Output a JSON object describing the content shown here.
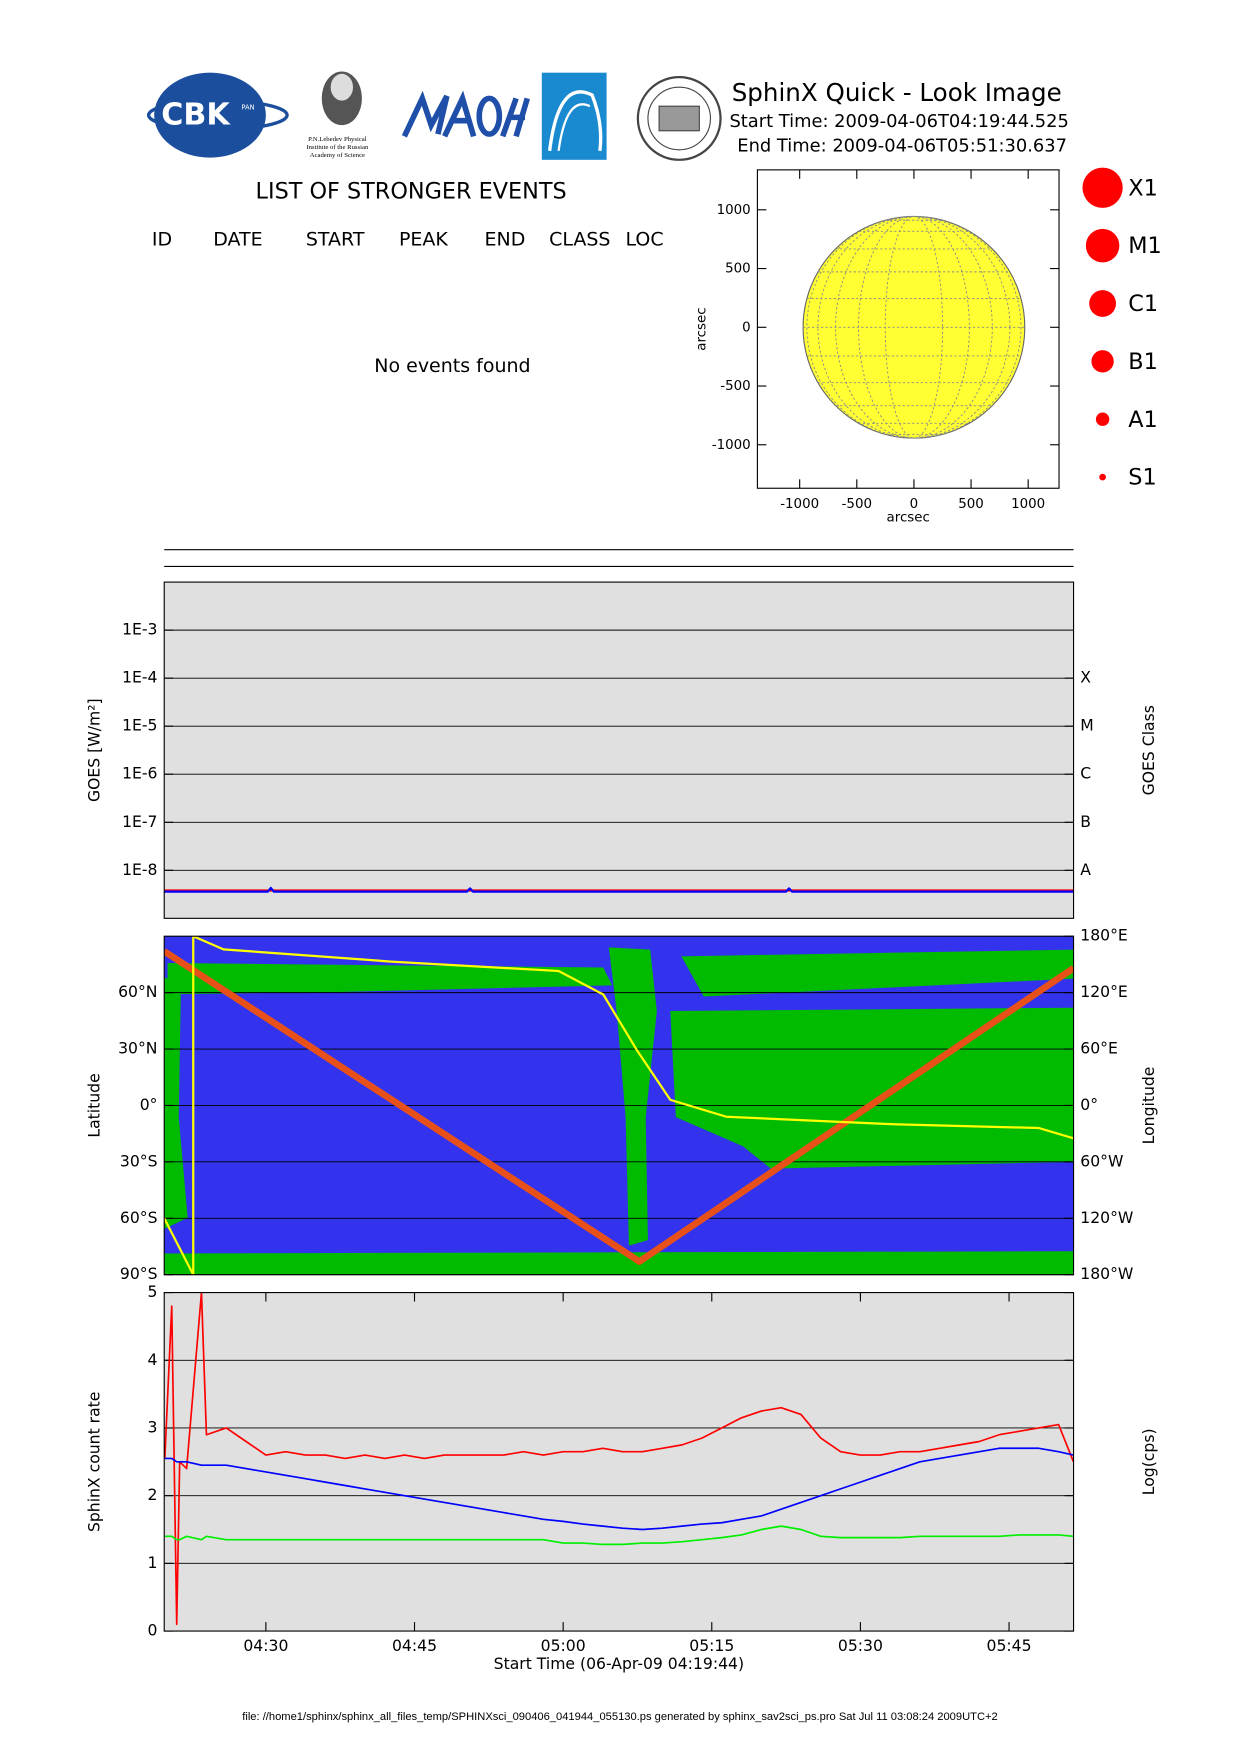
{
  "header": {
    "title": "SphinX Quick - Look Image",
    "start_time": "Start Time: 2009-04-06T04:19:44.525",
    "end_time": "End Time: 2009-04-06T05:51:30.637"
  },
  "logos": {
    "cbk": "CBK",
    "pan": "PAN",
    "lebedev": [
      "P.N.Lebedev Physical",
      "Institute of the Russian",
      "Academy of Science"
    ]
  },
  "events": {
    "title": "LIST OF STRONGER EVENTS",
    "columns": [
      "ID",
      "DATE",
      "START",
      "PEAK",
      "END",
      "CLASS",
      "LOC"
    ],
    "message": "No events found"
  },
  "classes": [
    "X1",
    "M1",
    "C1",
    "B1",
    "A1",
    "S1"
  ],
  "class_color": "#ff0000",
  "chart_data": [
    {
      "type": "disk",
      "xlabel": "arcsec",
      "ylabel": "arcsec",
      "xlim": [
        -1370,
        1270
      ],
      "ylim": [
        -1370,
        1340
      ],
      "xticks": [
        -1000,
        -500,
        0,
        500,
        1000
      ],
      "yticks": [
        -1000,
        -500,
        0,
        500,
        1000
      ],
      "radius": 970,
      "color": "#ffff33"
    },
    {
      "type": "line",
      "ylabel": "GOES [W/m²]",
      "y2label": "GOES Class",
      "log_y": true,
      "background": "#e0e0e0",
      "grid": true,
      "xlim": [
        259.74,
        351.51
      ],
      "ylim": [
        1e-09,
        0.01
      ],
      "yticks": [
        {
          "value": 0.001,
          "label": "1E-3"
        },
        {
          "value": 0.0001,
          "label": "1E-4"
        },
        {
          "value": 1e-05,
          "label": "1E-5"
        },
        {
          "value": 1e-06,
          "label": "1E-6"
        },
        {
          "value": 1e-07,
          "label": "1E-7"
        },
        {
          "value": 1e-08,
          "label": "1E-8"
        }
      ],
      "y2lim": [
        1e-09,
        0.01
      ],
      "y2ticks": [
        {
          "value": 0.0001,
          "label": "X"
        },
        {
          "value": 1e-05,
          "label": "M"
        },
        {
          "value": 1e-06,
          "label": "C"
        },
        {
          "value": 1e-07,
          "label": "B"
        },
        {
          "value": 1e-08,
          "label": "A"
        }
      ],
      "x": [
        259.74,
        270.2,
        270.5,
        270.8,
        290.3,
        290.6,
        290.9,
        322.5,
        322.8,
        323.1,
        351.51
      ],
      "series": [
        {
          "color": "#ff0000",
          "line_width": 2,
          "values": [
            3.8e-09,
            3.8e-09,
            3.8e-09,
            3.8e-09,
            3.8e-09,
            3.8e-09,
            3.8e-09,
            3.8e-09,
            3.8e-09,
            3.8e-09,
            3.8e-09
          ]
        },
        {
          "color": "#0000ff",
          "line_width": 2,
          "values": [
            3.6e-09,
            3.6e-09,
            4.3e-09,
            3.6e-09,
            3.6e-09,
            4.2e-09,
            3.6e-09,
            3.6e-09,
            4.2e-09,
            3.6e-09,
            3.6e-09
          ]
        }
      ]
    },
    {
      "type": "line",
      "ylabel": "Latitude",
      "y2label": "Longitude",
      "grid": true,
      "xlim": [
        259.74,
        351.51
      ],
      "ylim": [
        -90,
        90
      ],
      "yticks": [
        {
          "value": -90,
          "label": "90°S"
        },
        {
          "value": -60,
          "label": "60°S"
        },
        {
          "value": -30,
          "label": "30°S"
        },
        {
          "value": 0,
          "label": "0°"
        },
        {
          "value": 30,
          "label": "30°N"
        },
        {
          "value": 60,
          "label": "60°N"
        }
      ],
      "y2lim": [
        -180,
        180
      ],
      "y2ticks": [
        {
          "value": -180,
          "label": "180°W"
        },
        {
          "value": -120,
          "label": "120°W"
        },
        {
          "value": -60,
          "label": "60°W"
        },
        {
          "value": 0,
          "label": "0°"
        },
        {
          "value": 60,
          "label": "60°E"
        },
        {
          "value": 120,
          "label": "120°E"
        },
        {
          "value": 180,
          "label": "180°E"
        }
      ],
      "series": [
        {
          "color": "#e8501a",
          "line_width": 6,
          "x": [
            259.74,
            307.7,
            351.51
          ],
          "values": [
            82,
            -83,
            73
          ]
        },
        {
          "color": "#ffff00",
          "line_width": 2,
          "axis": "y2",
          "x": [
            259.74,
            262.67,
            262.67,
            265.72,
            282.63,
            299.54,
            304.05,
            307.43,
            310.81,
            316.45,
            333.36,
            348.02,
            351.51
          ],
          "values": [
            -120,
            -180,
            180,
            166,
            153,
            143,
            118,
            59,
            6,
            -12,
            -20,
            -24,
            -35
          ]
        }
      ]
    },
    {
      "type": "line",
      "xlabel": "Start Time (06-Apr-09 04:19:44)",
      "ylabel": "SphinX count rate",
      "y2label": "Log(cps)",
      "background": "#e0e0e0",
      "grid": true,
      "xlim": [
        259.74,
        351.51
      ],
      "ylim": [
        0,
        5
      ],
      "yticks": [
        0,
        1,
        2,
        3,
        4,
        5
      ],
      "xticks": [
        {
          "value": 270,
          "label": "04:30"
        },
        {
          "value": 285,
          "label": "04:45"
        },
        {
          "value": 300,
          "label": "05:00"
        },
        {
          "value": 315,
          "label": "05:15"
        },
        {
          "value": 330,
          "label": "05:30"
        },
        {
          "value": 345,
          "label": "05:45"
        }
      ],
      "x": [
        259.8,
        260.5,
        261.0,
        261.3,
        262,
        263.5,
        264,
        266,
        268,
        270,
        272,
        274,
        276,
        278,
        280,
        282,
        284,
        286,
        288,
        290,
        292,
        294,
        296,
        298,
        300,
        302,
        304,
        306,
        308,
        310,
        312,
        314,
        316,
        318,
        320,
        322,
        324,
        326,
        328,
        330,
        332,
        334,
        336,
        338,
        340,
        342,
        344,
        346,
        348,
        350,
        351.5
      ],
      "series": [
        {
          "color": "#ff0000",
          "line_width": 1.5,
          "values": [
            2.55,
            4.8,
            0.1,
            2.5,
            2.4,
            5.0,
            2.9,
            3.0,
            2.8,
            2.6,
            2.65,
            2.6,
            2.6,
            2.55,
            2.6,
            2.55,
            2.6,
            2.55,
            2.6,
            2.6,
            2.6,
            2.6,
            2.65,
            2.6,
            2.65,
            2.65,
            2.7,
            2.65,
            2.65,
            2.7,
            2.75,
            2.85,
            3.0,
            3.15,
            3.25,
            3.3,
            3.2,
            2.85,
            2.65,
            2.6,
            2.6,
            2.65,
            2.65,
            2.7,
            2.75,
            2.8,
            2.9,
            2.95,
            3.0,
            3.05,
            2.5
          ]
        },
        {
          "color": "#0000ff",
          "line_width": 1.5,
          "values": [
            2.55,
            2.55,
            2.5,
            2.5,
            2.5,
            2.45,
            2.45,
            2.45,
            2.4,
            2.35,
            2.3,
            2.25,
            2.2,
            2.15,
            2.1,
            2.05,
            2.0,
            1.95,
            1.9,
            1.85,
            1.8,
            1.75,
            1.7,
            1.65,
            1.62,
            1.58,
            1.55,
            1.52,
            1.5,
            1.52,
            1.55,
            1.58,
            1.6,
            1.65,
            1.7,
            1.8,
            1.9,
            2.0,
            2.1,
            2.2,
            2.3,
            2.4,
            2.5,
            2.55,
            2.6,
            2.65,
            2.7,
            2.7,
            2.7,
            2.65,
            2.6
          ]
        },
        {
          "color": "#00ee00",
          "line_width": 1.5,
          "values": [
            1.4,
            1.4,
            1.35,
            1.35,
            1.4,
            1.35,
            1.4,
            1.35,
            1.35,
            1.35,
            1.35,
            1.35,
            1.35,
            1.35,
            1.35,
            1.35,
            1.35,
            1.35,
            1.35,
            1.35,
            1.35,
            1.35,
            1.35,
            1.35,
            1.3,
            1.3,
            1.28,
            1.28,
            1.3,
            1.3,
            1.32,
            1.35,
            1.38,
            1.42,
            1.5,
            1.55,
            1.5,
            1.4,
            1.38,
            1.38,
            1.38,
            1.38,
            1.4,
            1.4,
            1.4,
            1.4,
            1.4,
            1.42,
            1.42,
            1.42,
            1.4
          ]
        }
      ]
    }
  ],
  "footer": "file: //home1/sphinx/sphinx_all_files_temp/SPHINXsci_090406_041944_055130.ps generated by sphinx_sav2sci_ps.pro Sat Jul 11 03:08:24 2009UTC+2"
}
